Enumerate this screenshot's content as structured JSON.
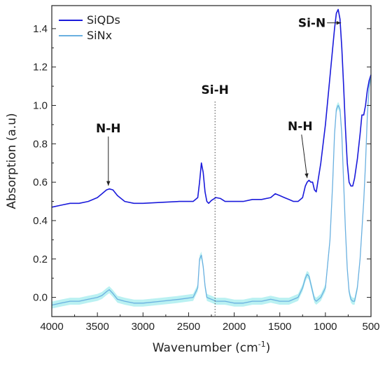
{
  "chart_data": {
    "type": "line",
    "title": "",
    "xlabel": "Wavenumber (cm",
    "xlabel_sup": "-1",
    "xlabel_close": ")",
    "ylabel": "Absorption (a.u)",
    "xlim": [
      4000,
      500
    ],
    "ylim": [
      -0.1,
      1.52
    ],
    "x_reversed": true,
    "grid": false,
    "legend_position": "top-left",
    "x_ticks": [
      4000,
      3500,
      3000,
      2500,
      2000,
      1500,
      1000,
      500
    ],
    "y_ticks": [
      0.0,
      0.2,
      0.4,
      0.6,
      0.8,
      1.0,
      1.2,
      1.4
    ],
    "y_tick_labels": [
      "0.0",
      "0.2",
      "0.4",
      "0.6",
      "0.8",
      "1.0",
      "1.2",
      "1.4"
    ],
    "series": [
      {
        "name": "SiQDs",
        "color": "#1a1adb",
        "x": [
          4000,
          3900,
          3800,
          3700,
          3600,
          3500,
          3450,
          3400,
          3370,
          3330,
          3280,
          3200,
          3100,
          3000,
          2800,
          2600,
          2450,
          2400,
          2380,
          2360,
          2340,
          2320,
          2300,
          2280,
          2250,
          2200,
          2150,
          2100,
          2000,
          1900,
          1800,
          1700,
          1600,
          1550,
          1500,
          1450,
          1400,
          1350,
          1300,
          1250,
          1220,
          1200,
          1180,
          1160,
          1140,
          1120,
          1100,
          1050,
          1000,
          950,
          920,
          900,
          880,
          860,
          840,
          820,
          800,
          780,
          760,
          740,
          720,
          700,
          680,
          650,
          620,
          600,
          580,
          560,
          540,
          520,
          500
        ],
        "y": [
          0.47,
          0.48,
          0.49,
          0.49,
          0.5,
          0.52,
          0.54,
          0.56,
          0.565,
          0.56,
          0.53,
          0.5,
          0.49,
          0.49,
          0.495,
          0.5,
          0.5,
          0.52,
          0.6,
          0.7,
          0.65,
          0.55,
          0.5,
          0.49,
          0.505,
          0.52,
          0.515,
          0.5,
          0.5,
          0.5,
          0.51,
          0.51,
          0.52,
          0.54,
          0.53,
          0.52,
          0.51,
          0.5,
          0.5,
          0.52,
          0.58,
          0.6,
          0.61,
          0.6,
          0.6,
          0.56,
          0.55,
          0.7,
          0.9,
          1.15,
          1.3,
          1.4,
          1.48,
          1.5,
          1.45,
          1.3,
          1.1,
          0.88,
          0.7,
          0.6,
          0.58,
          0.58,
          0.62,
          0.72,
          0.85,
          0.95,
          0.95,
          1.0,
          1.08,
          1.13,
          1.16
        ]
      },
      {
        "name": "SiNx",
        "color": "#6ab0e0",
        "band_color": "#aeeef0",
        "x": [
          4000,
          3900,
          3800,
          3700,
          3600,
          3500,
          3450,
          3400,
          3370,
          3330,
          3280,
          3200,
          3100,
          3000,
          2800,
          2600,
          2450,
          2400,
          2380,
          2360,
          2340,
          2320,
          2300,
          2250,
          2200,
          2100,
          2000,
          1900,
          1800,
          1700,
          1600,
          1500,
          1400,
          1300,
          1250,
          1220,
          1200,
          1180,
          1150,
          1120,
          1100,
          1050,
          1000,
          950,
          920,
          900,
          880,
          860,
          840,
          820,
          800,
          780,
          760,
          740,
          720,
          700,
          680,
          650,
          620,
          600,
          580,
          560,
          540,
          520,
          500
        ],
        "y": [
          -0.04,
          -0.03,
          -0.02,
          -0.02,
          -0.01,
          0.0,
          0.01,
          0.03,
          0.04,
          0.02,
          -0.01,
          -0.02,
          -0.03,
          -0.03,
          -0.02,
          -0.01,
          0.0,
          0.05,
          0.2,
          0.22,
          0.16,
          0.06,
          0.0,
          -0.01,
          -0.02,
          -0.02,
          -0.03,
          -0.03,
          -0.02,
          -0.02,
          -0.01,
          -0.02,
          -0.02,
          0.0,
          0.05,
          0.1,
          0.12,
          0.11,
          0.05,
          -0.01,
          -0.02,
          0.0,
          0.05,
          0.3,
          0.6,
          0.85,
          0.98,
          1.0,
          0.98,
          0.85,
          0.6,
          0.35,
          0.15,
          0.03,
          -0.01,
          -0.02,
          -0.02,
          0.05,
          0.2,
          0.35,
          0.5,
          0.7,
          0.95,
          1.1,
          1.15
        ]
      }
    ],
    "annotations": [
      {
        "text": "N-H",
        "x": 3380,
        "y": 0.56,
        "label_y": 0.86
      },
      {
        "text": "Si-H",
        "x": 2210,
        "y": 1.06
      },
      {
        "text": "N-H",
        "x": 1200,
        "y": 0.6,
        "label_y": 0.87
      },
      {
        "text": "Si-N",
        "x": 890,
        "y": 1.43
      }
    ],
    "vline": {
      "x": 2210,
      "y_top": 1.02,
      "y_bottom": -0.1
    }
  }
}
